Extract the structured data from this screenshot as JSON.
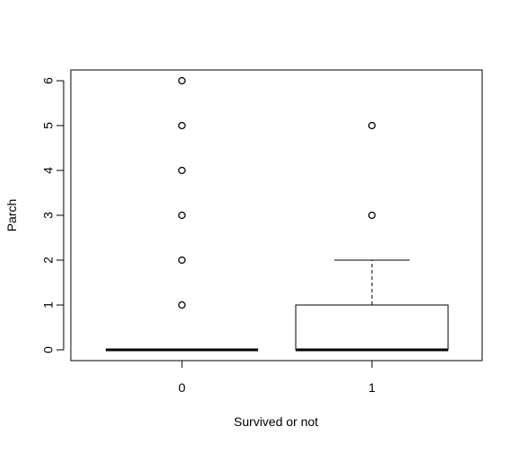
{
  "chart_data": {
    "type": "boxplot",
    "title": "",
    "xlabel": "Survived or not",
    "ylabel": "Parch",
    "ylim": [
      -0.22,
      6.22
    ],
    "yticks": [
      "0",
      "1",
      "2",
      "3",
      "4",
      "5",
      "6"
    ],
    "grid": false,
    "legend": "none",
    "groups": [
      {
        "label": "0",
        "min": 0,
        "q1": 0,
        "median": 0,
        "q3": 0,
        "max": 0,
        "outliers": [
          1,
          2,
          3,
          4,
          5,
          6
        ]
      },
      {
        "label": "1",
        "min": 0,
        "q1": 0,
        "median": 0,
        "q3": 1,
        "max": 2,
        "outliers": [
          3,
          5
        ]
      }
    ]
  },
  "colors": {
    "line": "#000000",
    "background": "#ffffff"
  }
}
